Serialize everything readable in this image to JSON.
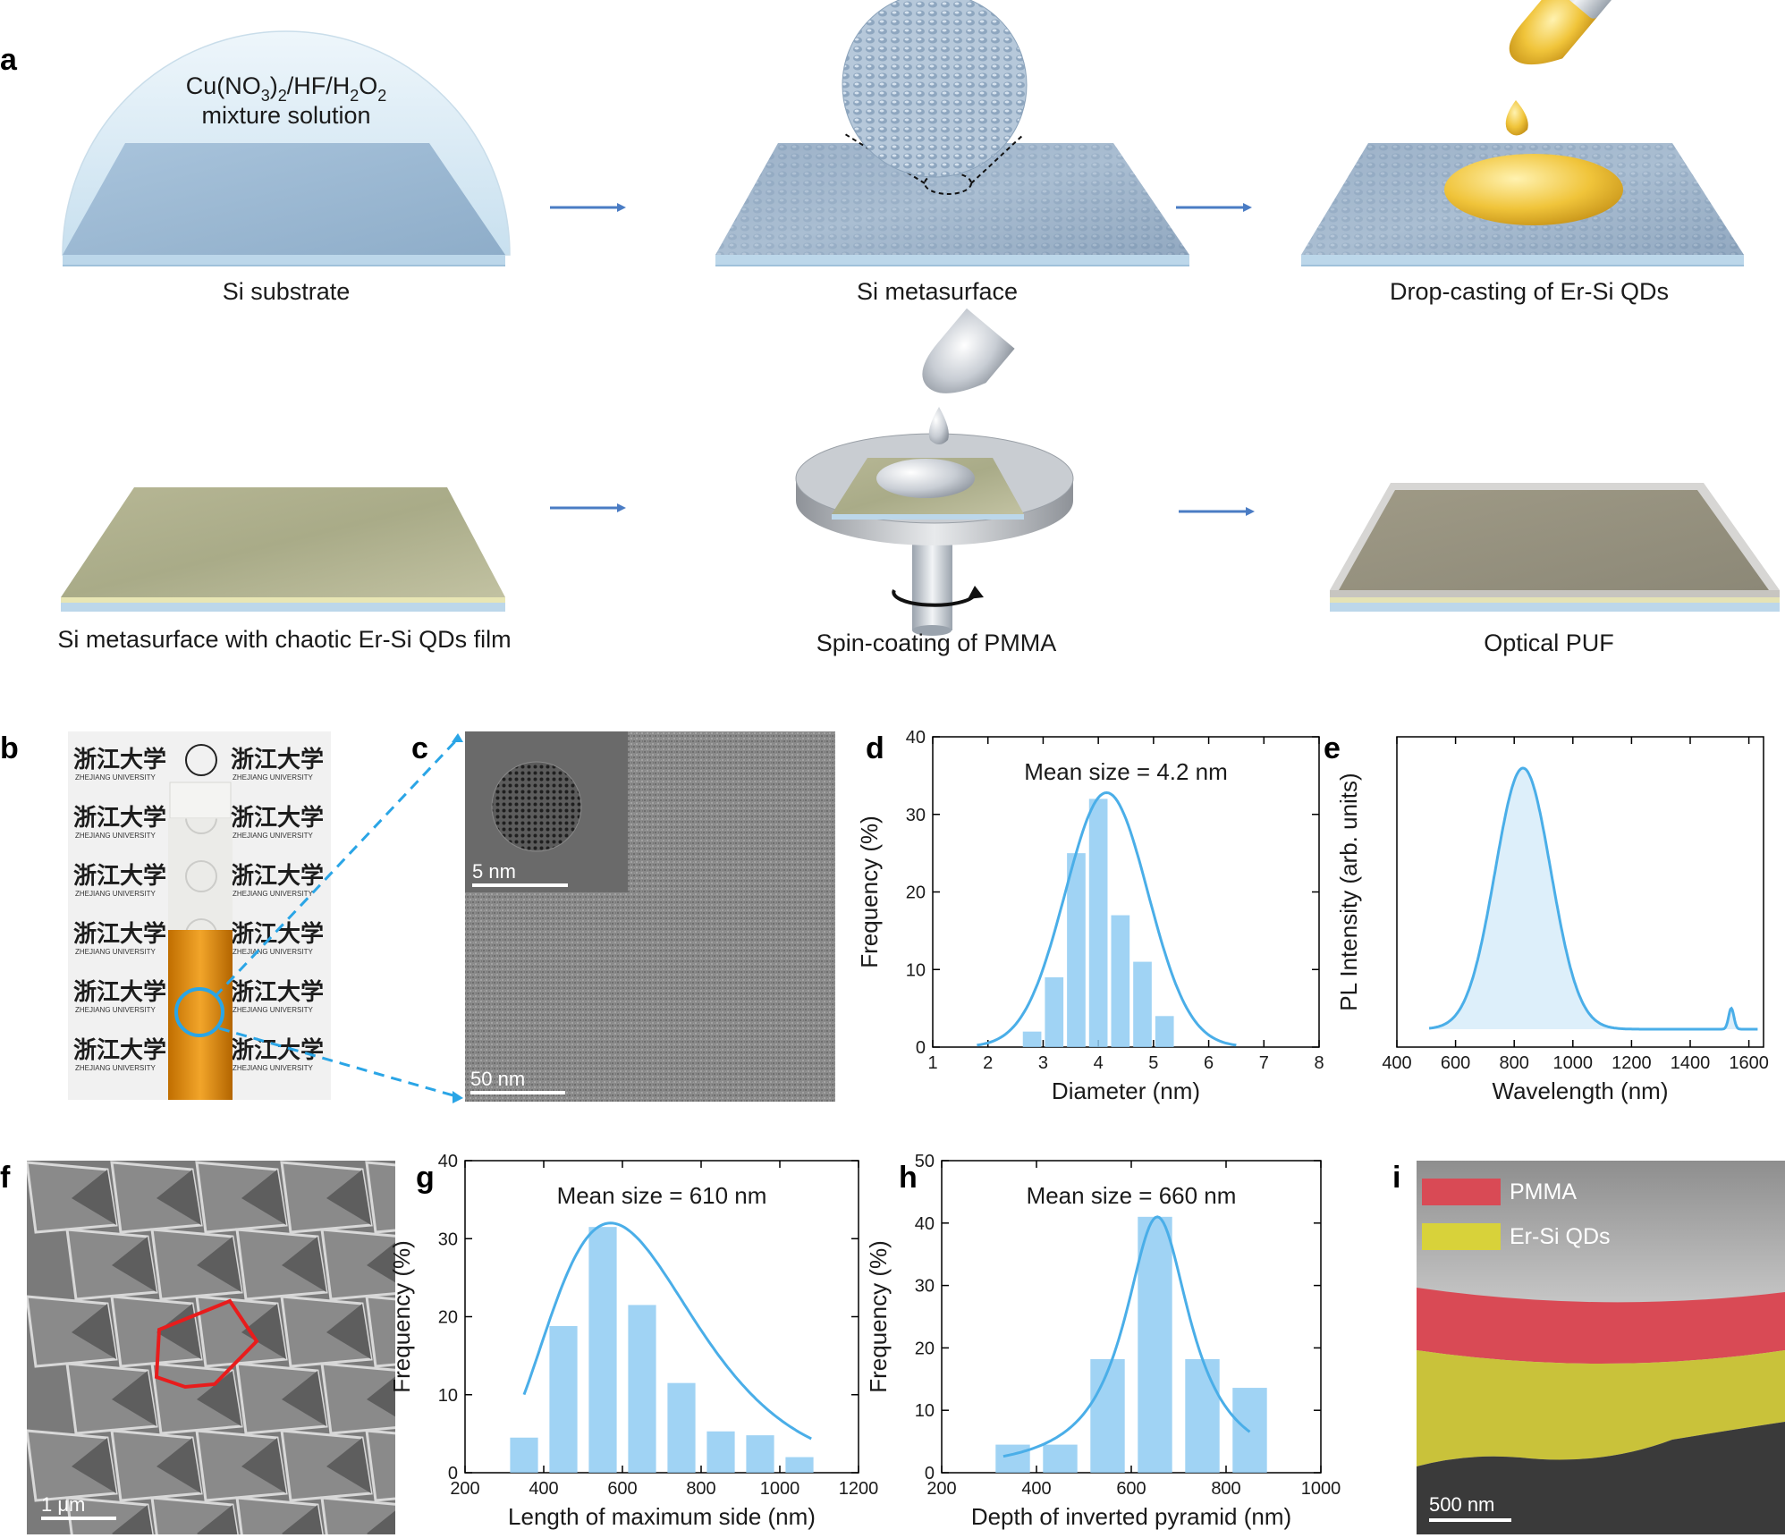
{
  "panel_labels": {
    "a": "a",
    "b": "b",
    "c": "c",
    "d": "d",
    "e": "e",
    "f": "f",
    "g": "g",
    "h": "h",
    "i": "i"
  },
  "schematic": {
    "solution_line1_base": "Cu(NO",
    "solution_line1_sub1": "3",
    "solution_line1_mid": ")",
    "solution_line1_sub2": "2",
    "solution_line1_rest": "/HF/H",
    "solution_line1_sub3": "2",
    "solution_line1_o": "O",
    "solution_line1_sub4": "2",
    "solution_line2": "mixture solution",
    "steps": [
      "Si substrate",
      "Si metasurface",
      "Drop-casting of Er-Si QDs",
      "Si metasurface with chaotic Er-Si QDs film",
      "Spin-coating of PMMA",
      "Optical PUF"
    ]
  },
  "photo_b": {
    "logo_text": "浙江大学",
    "logo_sub": "ZHEJIANG UNIVERSITY"
  },
  "tem_c": {
    "inset_scale": "5 nm",
    "main_scale": "50 nm"
  },
  "sem_f": {
    "scale": "1 μm"
  },
  "sem_i": {
    "scale": "500 nm",
    "legend": [
      "PMMA",
      "Er-Si QDs"
    ],
    "legend_colors": [
      "#d94a55",
      "#d8d23a"
    ]
  },
  "chart_data": [
    {
      "panel": "d",
      "type": "bar",
      "annotation": "Mean size = 4.2 nm",
      "xlabel": "Diameter (nm)",
      "ylabel": "Frequency (%)",
      "xlim": [
        1,
        8
      ],
      "ylim": [
        0,
        40
      ],
      "xticks": [
        "1",
        "2",
        "3",
        "4",
        "5",
        "6",
        "7",
        "8"
      ],
      "yticks": [
        "0",
        "10",
        "20",
        "30",
        "40"
      ],
      "bin_width": 0.4,
      "x": [
        2.8,
        3.2,
        3.6,
        4.0,
        4.4,
        4.8,
        5.2,
        5.6
      ],
      "values": [
        2,
        9,
        25,
        32,
        17,
        11,
        4,
        0
      ],
      "fit": {
        "type": "gaussian",
        "mean": 4.15,
        "sigma": 0.75,
        "peak": 32.8,
        "range": [
          1.8,
          6.5
        ]
      },
      "bar_color": "#8fcbf2",
      "fit_color": "#4aaee8"
    },
    {
      "panel": "e",
      "type": "line",
      "xlabel": "Wavelength (nm)",
      "ylabel": "PL Intensity (arb. units)",
      "xlim": [
        400,
        1650
      ],
      "xticks": [
        "400",
        "600",
        "800",
        "1000",
        "1200",
        "1400",
        "1600"
      ],
      "peaks": [
        {
          "center": 830,
          "sigma": 95,
          "height": 1.0
        },
        {
          "center": 1540,
          "sigma": 9,
          "height": 0.08
        }
      ],
      "range": [
        510,
        1630
      ],
      "line_color": "#4aaee8"
    },
    {
      "panel": "g",
      "type": "bar",
      "annotation": "Mean size = 610 nm",
      "xlabel": "Length of maximum side (nm)",
      "ylabel": "Frequency (%)",
      "xlim": [
        200,
        1200
      ],
      "ylim": [
        0,
        40
      ],
      "xticks": [
        "200",
        "400",
        "600",
        "800",
        "1000",
        "1200"
      ],
      "yticks": [
        "0",
        "10",
        "20",
        "30",
        "40"
      ],
      "bin_width": 80,
      "x": [
        350,
        450,
        550,
        650,
        750,
        850,
        950,
        1050
      ],
      "values": [
        4.5,
        18.8,
        31.5,
        21.5,
        11.5,
        5.3,
        4.8,
        2
      ],
      "fit": {
        "type": "lognormal",
        "mode": 570,
        "peak": 32,
        "range": [
          350,
          1080
        ]
      },
      "bar_color": "#8fcbf2",
      "fit_color": "#4aaee8"
    },
    {
      "panel": "h",
      "type": "bar",
      "annotation": "Mean size = 660 nm",
      "xlabel": "Depth of inverted pyramid (nm)",
      "ylabel": "Frequency (%)",
      "xlim": [
        200,
        1000
      ],
      "ylim": [
        0,
        50
      ],
      "xticks": [
        "200",
        "400",
        "600",
        "800",
        "1000"
      ],
      "yticks": [
        "0",
        "10",
        "20",
        "30",
        "40",
        "50"
      ],
      "bin_width": 80,
      "x": [
        350,
        450,
        550,
        650,
        750,
        850
      ],
      "values": [
        4.5,
        4.5,
        18.2,
        41,
        18.2,
        13.6
      ],
      "fit": {
        "type": "lorentzian",
        "center": 655,
        "gamma": 85,
        "peak": 41,
        "range": [
          330,
          850
        ]
      },
      "bar_color": "#8fcbf2",
      "fit_color": "#4aaee8"
    }
  ]
}
